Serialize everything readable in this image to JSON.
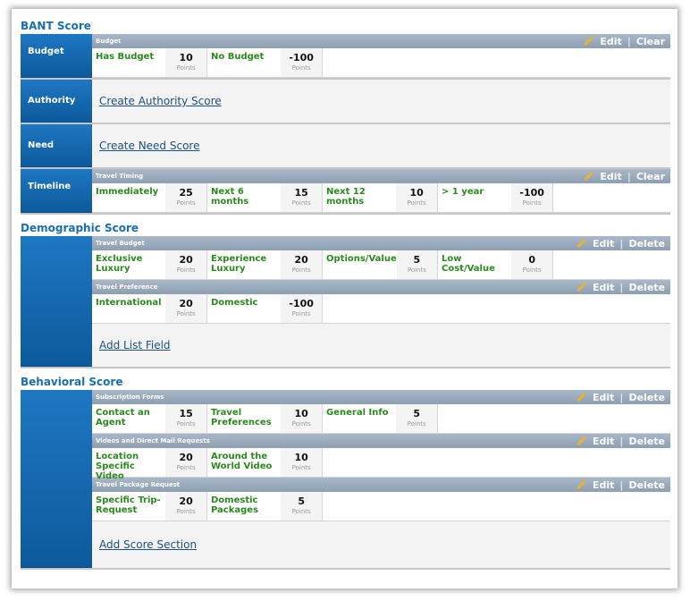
{
  "sections": {
    "bant": {
      "title": "BANT Score",
      "budget": {
        "label": "Budget",
        "group_title": "Budget",
        "edit": "Edit",
        "clear": "Clear",
        "items": [
          {
            "label": "Has Budget",
            "value": "10",
            "unit": "Points"
          },
          {
            "label": "No Budget",
            "value": "-100",
            "unit": "Points"
          }
        ]
      },
      "authority": {
        "label": "Authority",
        "link": "Create Authority Score"
      },
      "need": {
        "label": "Need",
        "link": "Create Need Score"
      },
      "timeline": {
        "label": "Timeline",
        "group_title": "Travel Timing",
        "edit": "Edit",
        "clear": "Clear",
        "items": [
          {
            "label": "Immediately",
            "value": "25",
            "unit": "Points"
          },
          {
            "label": "Next 6 months",
            "value": "15",
            "unit": "Points"
          },
          {
            "label": "Next 12 months",
            "value": "10",
            "unit": "Points"
          },
          {
            "label": "> 1 year",
            "value": "-100",
            "unit": "Points"
          }
        ]
      }
    },
    "demographic": {
      "title": "Demographic Score",
      "groups": [
        {
          "title": "Travel Budget",
          "edit": "Edit",
          "delete": "Delete",
          "items": [
            {
              "label": "Exclusive Luxury",
              "value": "20",
              "unit": "Points"
            },
            {
              "label": "Experience Luxury",
              "value": "20",
              "unit": "Points"
            },
            {
              "label": "Options/Value",
              "value": "5",
              "unit": "Points"
            },
            {
              "label": "Low Cost/Value",
              "value": "0",
              "unit": "Points"
            }
          ]
        },
        {
          "title": "Travel Preference",
          "edit": "Edit",
          "delete": "Delete",
          "items": [
            {
              "label": "International",
              "value": "20",
              "unit": "Points"
            },
            {
              "label": "Domestic",
              "value": "-100",
              "unit": "Points"
            }
          ]
        }
      ],
      "add_link": "Add List Field"
    },
    "behavioral": {
      "title": "Behavioral Score",
      "groups": [
        {
          "title": "Subscription Forms",
          "edit": "Edit",
          "delete": "Delete",
          "items": [
            {
              "label": "Contact an Agent",
              "value": "15",
              "unit": "Points"
            },
            {
              "label": "Travel Preferences",
              "value": "10",
              "unit": "Points"
            },
            {
              "label": "General Info",
              "value": "5",
              "unit": "Points"
            }
          ]
        },
        {
          "title": "Videos and Direct Mail Requests",
          "edit": "Edit",
          "delete": "Delete",
          "items": [
            {
              "label": "Location Specific Video",
              "value": "20",
              "unit": "Points"
            },
            {
              "label": "Around the World Video",
              "value": "10",
              "unit": "Points"
            }
          ]
        },
        {
          "title": "Travel Package Request",
          "edit": "Edit",
          "delete": "Delete",
          "items": [
            {
              "label": "Specific Trip-Request",
              "value": "20",
              "unit": "Points"
            },
            {
              "label": "Domestic Packages",
              "value": "5",
              "unit": "Points"
            }
          ]
        }
      ],
      "add_link": "Add Score Section"
    }
  },
  "colors": {
    "title_blue": "#1a6fb0",
    "label_blue": "#0d5a9c",
    "item_green": "#2a8a1c",
    "header_gray": "#8d9fb3",
    "link": "#1f4f7f"
  },
  "icons": {
    "edit": "pencil-icon"
  }
}
